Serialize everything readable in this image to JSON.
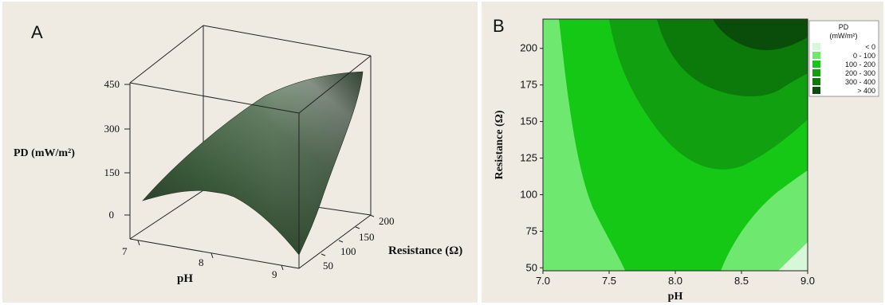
{
  "chart_data": [
    {
      "panel_label": "A",
      "type": "surface3d",
      "zlabel": "PD (mW/m²)",
      "xlabel": "pH",
      "ylabel": "Resistance (Ω)",
      "z_ticks": [
        "450",
        "300",
        "150",
        "0"
      ],
      "x_ticks": [
        "7",
        "8",
        "9"
      ],
      "y_ticks": [
        "50",
        "100",
        "150",
        "200"
      ],
      "surface_color": "#4e6b4e"
    },
    {
      "panel_label": "B",
      "type": "contour",
      "xlabel": "pH",
      "ylabel": "Resistance (Ω)",
      "xlim": [
        7.0,
        9.0
      ],
      "ylim": [
        48,
        220
      ],
      "x_ticks": [
        "7.0",
        "7.5",
        "8.0",
        "8.5",
        "9.0"
      ],
      "y_ticks": [
        "50",
        "75",
        "100",
        "125",
        "150",
        "175",
        "200"
      ],
      "legend": {
        "title_line1": "PD",
        "title_line2": "(mW/m²)",
        "entries": [
          {
            "range": "<    0",
            "color": "#d8f7d8"
          },
          {
            "range": "0  -   100",
            "color": "#6ee86e"
          },
          {
            "range": "100  -   200",
            "color": "#16c816"
          },
          {
            "range": "200  -   300",
            "color": "#10a010"
          },
          {
            "range": "300  -   400",
            "color": "#0b7a0b"
          },
          {
            "range": ">   400",
            "color": "#0a4d0a"
          }
        ]
      },
      "levels": [
        {
          "level": "0-100",
          "color": "#6ee86e"
        },
        {
          "level": "100-200",
          "color": "#16c816"
        },
        {
          "level": "200-300",
          "color": "#10a010"
        },
        {
          "level": "300-400",
          "color": "#0b7a0b"
        },
        {
          "level": ">400",
          "color": "#0a4d0a"
        },
        {
          "level": "<0",
          "color": "#d8f7d8"
        }
      ]
    }
  ]
}
